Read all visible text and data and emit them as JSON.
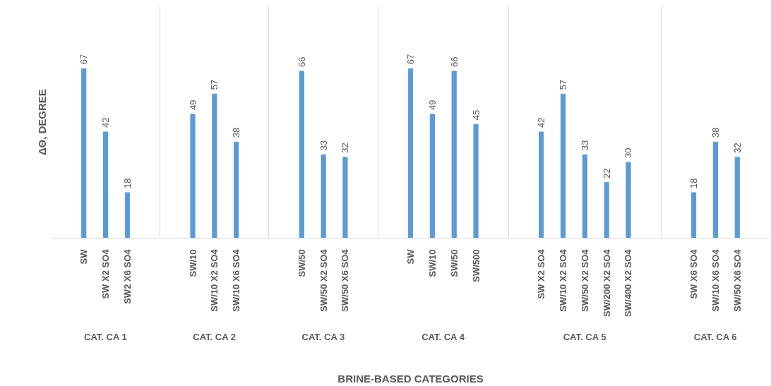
{
  "chart_data": [
    {
      "type": "bar",
      "ylabel": "ΔΘ, DEGREE",
      "annotations": [
        "BRINE-BASED CATEGORIES"
      ],
      "xlabel": "CAT. CA 1",
      "categories": [
        "SW",
        "SW X2 SO4",
        "SW2 X6 SO4"
      ],
      "values": [
        67,
        42,
        18
      ],
      "color": "#5b9bd5",
      "data_labels": true,
      "tick_labels": "x"
    },
    {
      "type": "bar",
      "xlabel": "CAT. CA 2",
      "categories": [
        "SW/10",
        "SW/10 X2 SO4",
        "SW/10 X6 SO4"
      ],
      "values": [
        49,
        57,
        38
      ],
      "color": "#5b9bd5",
      "data_labels": true,
      "tick_labels": "x"
    },
    {
      "type": "bar",
      "xlabel": "CAT. CA 3",
      "categories": [
        "SW/50",
        "SW/50 X2 SO4",
        "SW/50 X6 SO4"
      ],
      "values": [
        66,
        33,
        32
      ],
      "color": "#5b9bd5",
      "data_labels": true,
      "tick_labels": "x"
    },
    {
      "type": "bar",
      "xlabel": "CAT. CA 4",
      "categories": [
        "SW",
        "SW/10",
        "SW/50",
        "SW/500"
      ],
      "values": [
        67,
        49,
        66,
        45
      ],
      "color": "#5b9bd5",
      "data_labels": true,
      "tick_labels": "x"
    },
    {
      "type": "bar",
      "xlabel": "CAT. CA 5",
      "categories": [
        "SW X2 SO4",
        "SW/10 X2 SO4",
        "SW/50 X2 SO4",
        "SW/200 X2 SO4",
        "SW/400 X2 SO4"
      ],
      "values": [
        42,
        57,
        33,
        22,
        30
      ],
      "color": "#5b9bd5",
      "data_labels": true,
      "tick_labels": "x"
    },
    {
      "type": "bar",
      "xlabel": "CAT. CA 6",
      "categories": [
        "SW X6 SO4",
        "SW/10 X6 SO4",
        "SW/50 X6 SO4"
      ],
      "values": [
        18,
        38,
        32
      ],
      "color": "#5b9bd5",
      "data_labels": true,
      "tick_labels": "x"
    }
  ]
}
